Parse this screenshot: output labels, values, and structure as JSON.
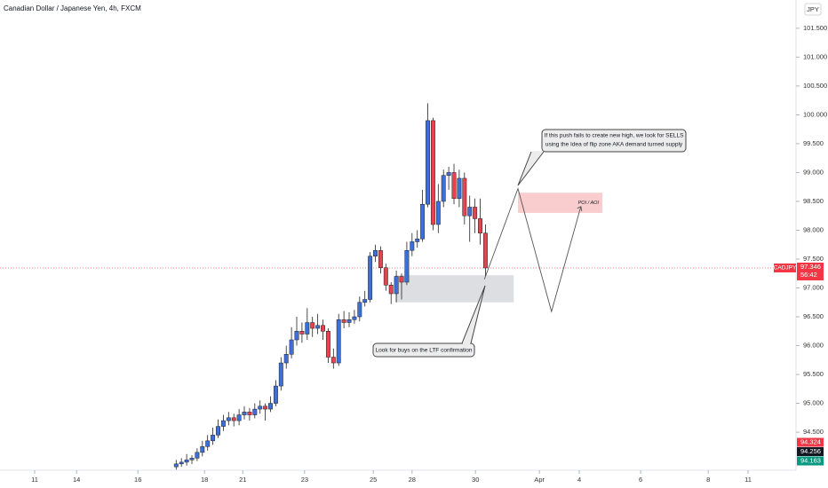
{
  "chart_data": {
    "type": "candlestick",
    "title": "Canadian Dollar / Japanese Yen, 4h, FXCM",
    "currency": "JPY",
    "symbol": "CADJPY",
    "last_price": 97.346,
    "last_price_label": "97.346",
    "countdown": "56:42",
    "price_tags": [
      {
        "value": 94.324,
        "label": "94.324",
        "color": "#f23645"
      },
      {
        "value": 94.256,
        "label": "94.256",
        "color": "#131722"
      },
      {
        "value": 94.163,
        "label": "94.163",
        "color": "#089981"
      }
    ],
    "up_color": "#3d6fd8",
    "down_color": "#e8414f",
    "x": [
      27,
      28,
      29,
      30,
      31,
      32,
      33,
      34,
      35,
      36,
      37,
      38,
      39,
      40,
      41,
      42,
      43,
      44,
      45,
      46,
      47,
      48,
      49,
      50,
      51,
      52,
      53,
      54,
      55,
      56,
      57,
      58,
      59,
      60,
      61,
      62,
      63,
      64,
      65,
      66,
      67,
      68,
      69,
      70,
      71,
      72,
      73,
      74,
      75,
      76,
      77,
      78,
      79,
      80,
      81,
      82,
      83,
      84,
      85,
      86
    ],
    "open": [
      93.9,
      93.95,
      93.98,
      94.02,
      94.05,
      94.15,
      94.25,
      94.35,
      94.45,
      94.6,
      94.7,
      94.75,
      94.7,
      94.8,
      94.85,
      94.8,
      94.9,
      94.95,
      94.9,
      95.0,
      95.3,
      95.7,
      95.85,
      96.1,
      96.25,
      96.2,
      96.4,
      96.3,
      96.35,
      96.25,
      95.8,
      95.7,
      96.45,
      96.4,
      96.45,
      96.5,
      96.75,
      96.8,
      97.55,
      97.65,
      97.35,
      97.05,
      96.9,
      97.2,
      97.1,
      97.65,
      97.8,
      97.85,
      98.45,
      99.9,
      98.1,
      98.5,
      98.95,
      99.0,
      98.55,
      98.9,
      98.25,
      98.4,
      98.2,
      97.95
    ],
    "high": [
      94.02,
      94.05,
      94.12,
      94.1,
      94.22,
      94.35,
      94.45,
      94.58,
      94.72,
      94.8,
      94.85,
      94.82,
      94.9,
      94.95,
      94.92,
      95.0,
      95.05,
      95.0,
      95.12,
      95.4,
      95.8,
      96.0,
      96.32,
      96.5,
      96.4,
      96.65,
      96.5,
      96.55,
      96.45,
      96.3,
      95.95,
      96.55,
      96.6,
      96.58,
      96.62,
      96.85,
      96.95,
      97.62,
      97.75,
      97.72,
      97.42,
      97.1,
      97.3,
      97.25,
      97.8,
      97.95,
      98.0,
      98.7,
      100.2,
      99.95,
      98.8,
      99.05,
      99.1,
      99.15,
      99.05,
      99.0,
      98.6,
      98.55,
      98.55,
      98.1
    ],
    "low": [
      93.85,
      93.9,
      93.92,
      93.95,
      94.0,
      94.08,
      94.18,
      94.28,
      94.4,
      94.52,
      94.62,
      94.6,
      94.62,
      94.72,
      94.7,
      94.74,
      94.82,
      94.7,
      94.85,
      94.95,
      95.22,
      95.6,
      95.78,
      96.0,
      96.05,
      96.1,
      96.15,
      96.2,
      96.1,
      95.7,
      95.6,
      95.65,
      96.3,
      96.32,
      96.38,
      96.42,
      96.68,
      96.75,
      97.45,
      97.25,
      96.95,
      96.72,
      96.75,
      96.8,
      97.05,
      97.55,
      97.7,
      97.8,
      98.4,
      98.0,
      97.95,
      98.4,
      98.7,
      98.45,
      98.4,
      98.1,
      97.8,
      97.95,
      97.75,
      97.2
    ],
    "close": [
      93.95,
      93.98,
      94.02,
      94.05,
      94.15,
      94.25,
      94.35,
      94.45,
      94.6,
      94.7,
      94.75,
      94.7,
      94.8,
      94.85,
      94.8,
      94.9,
      94.95,
      94.9,
      95.0,
      95.3,
      95.7,
      95.85,
      96.1,
      96.25,
      96.2,
      96.4,
      96.3,
      96.35,
      96.25,
      95.8,
      95.7,
      96.45,
      96.4,
      96.45,
      96.5,
      96.75,
      96.8,
      97.55,
      97.65,
      97.35,
      97.05,
      96.9,
      97.2,
      97.1,
      97.65,
      97.8,
      97.85,
      98.45,
      99.9,
      98.1,
      98.5,
      98.95,
      99.0,
      98.55,
      98.9,
      98.25,
      98.4,
      98.2,
      97.95,
      97.346
    ],
    "ylim": [
      93.84,
      101.99
    ],
    "yticks": [
      {
        "value": 94.5,
        "label": "94.500"
      },
      {
        "value": 95,
        "label": "95.000"
      },
      {
        "value": 95.5,
        "label": "95.500"
      },
      {
        "value": 96,
        "label": "96.000"
      },
      {
        "value": 96.5,
        "label": "96.500"
      },
      {
        "value": 97,
        "label": "97.000"
      },
      {
        "value": 97.5,
        "label": "97.500"
      },
      {
        "value": 98,
        "label": "98.000"
      },
      {
        "value": 98.5,
        "label": "98.500"
      },
      {
        "value": 99,
        "label": "99.000"
      },
      {
        "value": 99.5,
        "label": "99.500"
      },
      {
        "value": 100,
        "label": "100.000"
      },
      {
        "value": 100.5,
        "label": "100.500"
      },
      {
        "value": 101,
        "label": "101.000"
      },
      {
        "value": 101.5,
        "label": "101.500"
      }
    ],
    "xlim": [
      -6.61,
      145.08
    ],
    "xticks": [
      {
        "value": 0,
        "label": "11"
      },
      {
        "value": 8,
        "label": "14"
      },
      {
        "value": 19.7,
        "label": "16"
      },
      {
        "value": 32.4,
        "label": "18"
      },
      {
        "value": 39.7,
        "label": "21"
      },
      {
        "value": 51.5,
        "label": "23"
      },
      {
        "value": 64.6,
        "label": "25"
      },
      {
        "value": 72,
        "label": "28"
      },
      {
        "value": 84.1,
        "label": "30"
      },
      {
        "value": 96.3,
        "label": "Apr"
      },
      {
        "value": 103.9,
        "label": "4"
      },
      {
        "value": 115.6,
        "label": "6"
      },
      {
        "value": 128.5,
        "label": "8"
      },
      {
        "value": 136.1,
        "label": "11"
      }
    ],
    "zones": [
      {
        "top": 97.22,
        "bottom": 96.75,
        "x_start": 68.8,
        "x_end": 91.4,
        "color": "#d6d8dc"
      },
      {
        "top": 98.65,
        "bottom": 98.3,
        "x_start": 92.2,
        "x_end": 108.3,
        "color": "#f8c4c4",
        "label": "POI / AOI"
      }
    ],
    "projection": {
      "x": [
        85.8,
        92.2,
        98.6,
        104.2
      ],
      "y": [
        97.15,
        98.72,
        96.59,
        98.41
      ]
    },
    "annotations": [
      "If this push fails to create new high, we look for SELLS",
      "using the Idea of flip zone AKA demand turned supply",
      "Look for buys on the LTF confirmation"
    ]
  }
}
